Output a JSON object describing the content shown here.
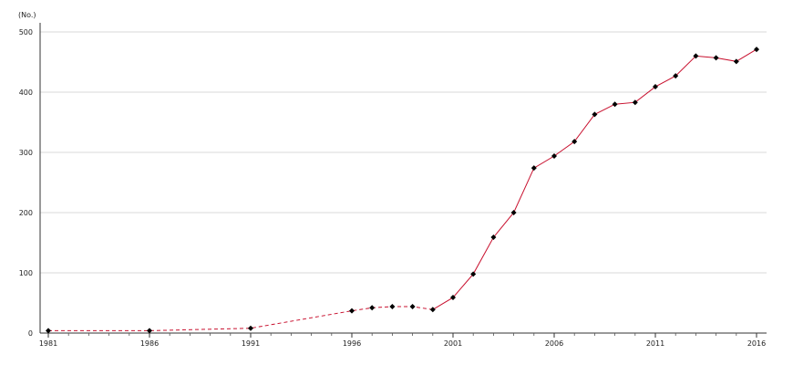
{
  "chart_data": {
    "type": "line",
    "unit_label": "(No.)",
    "x_ticks": [
      "1981",
      "1986",
      "1991",
      "1996",
      "2001",
      "2006",
      "2011",
      "2016"
    ],
    "y_ticks": [
      "0",
      "100",
      "200",
      "300",
      "400",
      "500"
    ],
    "xlim": [
      1981,
      2016
    ],
    "ylim": [
      0,
      500
    ],
    "grid": true,
    "line_color": "#c8102e",
    "marker_color": "#000000",
    "series": [
      {
        "points": [
          {
            "x": 1981,
            "y": 4,
            "marker": true
          },
          {
            "x": 1986,
            "y": 4,
            "marker": true
          },
          {
            "x": 1991,
            "y": 8,
            "marker": true
          },
          {
            "x": 1996,
            "y": 37,
            "marker": true
          },
          {
            "x": 1997,
            "y": 42,
            "marker": true
          },
          {
            "x": 1998,
            "y": 44,
            "marker": true
          },
          {
            "x": 1999,
            "y": 44,
            "marker": true
          },
          {
            "x": 2000,
            "y": 39,
            "marker": true
          },
          {
            "x": 2001,
            "y": 59,
            "marker": true
          },
          {
            "x": 2002,
            "y": 98,
            "marker": true
          },
          {
            "x": 2003,
            "y": 159,
            "marker": true
          },
          {
            "x": 2004,
            "y": 200,
            "marker": true
          },
          {
            "x": 2005,
            "y": 274,
            "marker": true
          },
          {
            "x": 2006,
            "y": 294,
            "marker": true
          },
          {
            "x": 2007,
            "y": 318,
            "marker": true
          },
          {
            "x": 2008,
            "y": 363,
            "marker": true
          },
          {
            "x": 2009,
            "y": 380,
            "marker": true
          },
          {
            "x": 2010,
            "y": 383,
            "marker": true
          },
          {
            "x": 2011,
            "y": 409,
            "marker": true
          },
          {
            "x": 2012,
            "y": 427,
            "marker": true
          },
          {
            "x": 2013,
            "y": 460,
            "marker": true
          },
          {
            "x": 2014,
            "y": 457,
            "marker": true
          },
          {
            "x": 2015,
            "y": 451,
            "marker": true
          },
          {
            "x": 2016,
            "y": 471,
            "marker": true
          }
        ],
        "dashed_until": 2000
      }
    ]
  }
}
